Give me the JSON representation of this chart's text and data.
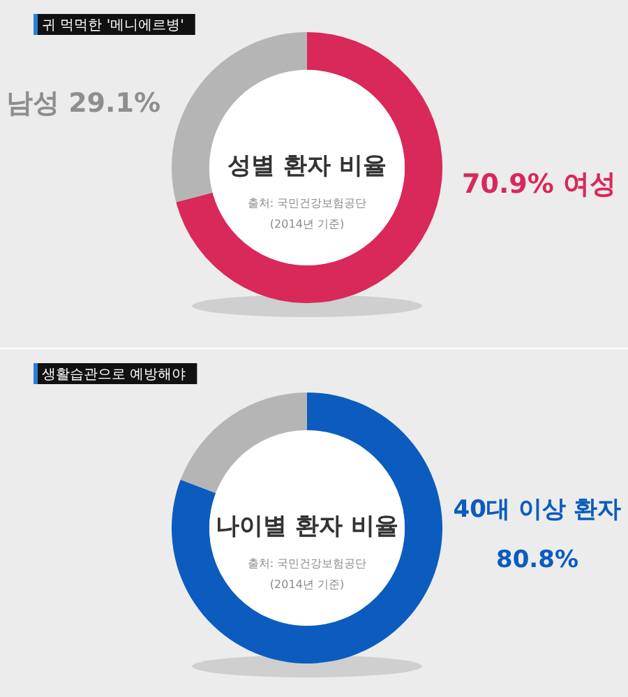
{
  "chart_data": [
    {
      "type": "donut",
      "title": "성별 환자 비율",
      "subtitle": "귀 먹먹한 '메니에르병'",
      "categories": [
        "여성",
        "남성"
      ],
      "values": [
        70.9,
        29.1
      ],
      "colors": [
        "#d9285a",
        "#b5b5b5"
      ],
      "value_labels": [
        "70.9%",
        "29.1%"
      ],
      "annotations": [
        "출처: 국민건강보험공단",
        "(2014년 기준)"
      ]
    },
    {
      "type": "donut",
      "title": "나이별 환자 비율",
      "subtitle": "생활습관으로 예방해야",
      "categories": [
        "40대 이상 환자",
        null
      ],
      "values": [
        80.8,
        19.2
      ],
      "colors": [
        "#0b5cbe",
        "#b5b5b5"
      ],
      "value_labels": [
        "80.8%",
        null
      ],
      "annotations": [
        "출처: 국민건강보험공단",
        "(2014년 기준)"
      ]
    }
  ]
}
